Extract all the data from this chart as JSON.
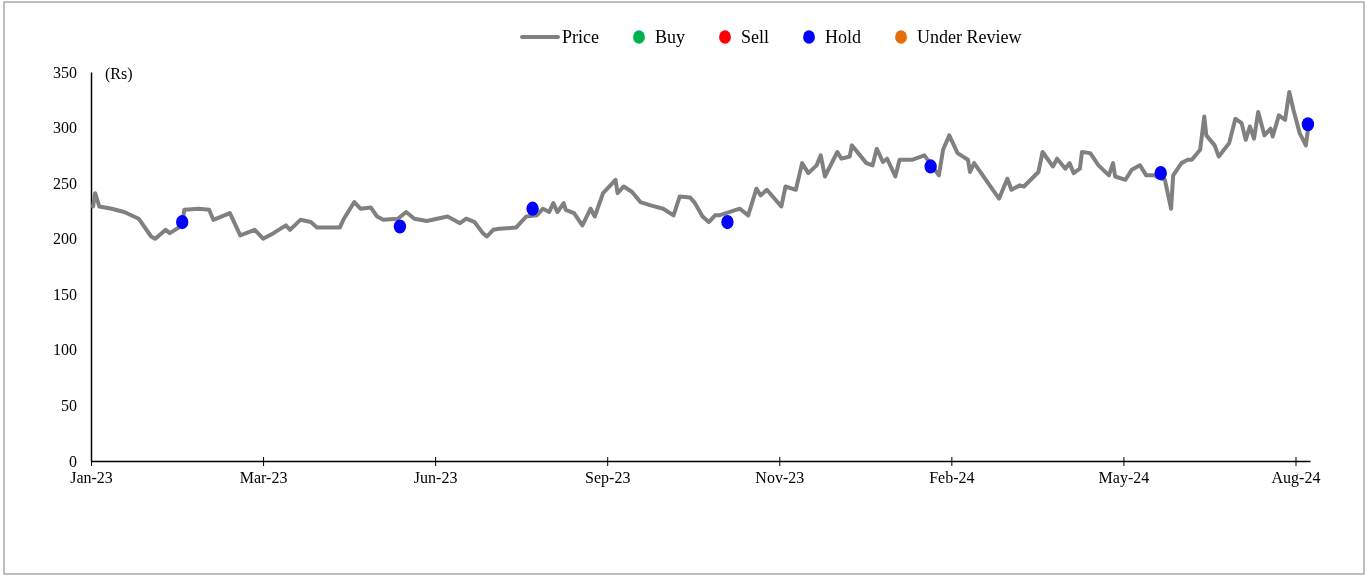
{
  "chart_data": {
    "type": "line",
    "ylabel": "(Rs)",
    "legend": "top",
    "line_style": "solid",
    "grid": false,
    "xlim": [
      "2023-01-01",
      "2024-08-11"
    ],
    "ylim": [
      0,
      350
    ],
    "yticks": [
      0,
      50,
      100,
      150,
      200,
      250,
      300,
      350
    ],
    "xticks": [
      {
        "value": "2023-01-01",
        "label": "Jan-23"
      },
      {
        "value": "2023-03-25",
        "label": "Mar-23"
      },
      {
        "value": "2023-06-16",
        "label": "Jun-23"
      },
      {
        "value": "2023-09-07",
        "label": "Sep-23"
      },
      {
        "value": "2023-11-29",
        "label": "Nov-23"
      },
      {
        "value": "2024-02-20",
        "label": "Feb-24"
      },
      {
        "value": "2024-05-13",
        "label": "May-24"
      },
      {
        "value": "2024-08-04",
        "label": "Aug-24"
      }
    ],
    "series": [
      {
        "name": "Price",
        "marker": "none",
        "color": "#808080",
        "x": [
          "2023-01-02",
          "2023-01-03",
          "2023-01-05",
          "2023-01-11",
          "2023-01-17",
          "2023-01-24",
          "2023-01-30",
          "2023-02-01",
          "2023-02-06",
          "2023-02-08",
          "2023-02-14",
          "2023-02-15",
          "2023-02-22",
          "2023-02-27",
          "2023-03-01",
          "2023-03-09",
          "2023-03-14",
          "2023-03-21",
          "2023-03-25",
          "2023-03-30",
          "2023-04-05",
          "2023-04-07",
          "2023-04-12",
          "2023-04-17",
          "2023-04-20",
          "2023-05-01",
          "2023-05-03",
          "2023-05-08",
          "2023-05-11",
          "2023-05-16",
          "2023-05-19",
          "2023-05-22",
          "2023-05-29",
          "2023-06-02",
          "2023-06-06",
          "2023-06-12",
          "2023-06-22",
          "2023-06-28",
          "2023-07-01",
          "2023-07-05",
          "2023-07-09",
          "2023-07-11",
          "2023-07-14",
          "2023-07-17",
          "2023-07-25",
          "2023-07-30",
          "2023-08-04",
          "2023-08-07",
          "2023-08-10",
          "2023-08-12",
          "2023-08-14",
          "2023-08-17",
          "2023-08-18",
          "2023-08-22",
          "2023-08-26",
          "2023-08-30",
          "2023-09-01",
          "2023-09-05",
          "2023-09-10",
          "2023-09-11",
          "2023-09-12",
          "2023-09-15",
          "2023-09-19",
          "2023-09-23",
          "2023-09-28",
          "2023-10-04",
          "2023-10-09",
          "2023-10-12",
          "2023-10-17",
          "2023-10-19",
          "2023-10-23",
          "2023-10-26",
          "2023-10-29",
          "2023-10-31",
          "2023-11-10",
          "2023-11-14",
          "2023-11-18",
          "2023-11-20",
          "2023-11-23",
          "2023-11-30",
          "2023-12-02",
          "2023-12-07",
          "2023-12-10",
          "2023-12-13",
          "2023-12-17",
          "2023-12-19",
          "2023-12-21",
          "2023-12-27",
          "2023-12-29",
          "2024-01-02",
          "2024-01-03",
          "2024-01-10",
          "2024-01-13",
          "2024-01-15",
          "2024-01-18",
          "2024-01-20",
          "2024-01-24",
          "2024-01-26",
          "2024-02-01",
          "2024-02-07",
          "2024-02-14",
          "2024-02-16",
          "2024-02-19",
          "2024-02-23",
          "2024-02-28",
          "2024-02-29",
          "2024-03-02",
          "2024-03-14",
          "2024-03-18",
          "2024-03-20",
          "2024-03-24",
          "2024-03-26",
          "2024-04-02",
          "2024-04-04",
          "2024-04-09",
          "2024-04-11",
          "2024-04-15",
          "2024-04-17",
          "2024-04-19",
          "2024-04-22",
          "2024-04-23",
          "2024-04-27",
          "2024-05-01",
          "2024-05-06",
          "2024-05-08",
          "2024-05-09",
          "2024-05-14",
          "2024-05-17",
          "2024-05-21",
          "2024-05-24",
          "2024-05-28",
          "2024-06-02",
          "2024-06-05",
          "2024-06-06",
          "2024-06-10",
          "2024-06-13",
          "2024-06-15",
          "2024-06-19",
          "2024-06-21",
          "2024-06-22",
          "2024-06-26",
          "2024-06-28",
          "2024-07-03",
          "2024-07-06",
          "2024-07-09",
          "2024-07-11",
          "2024-07-13",
          "2024-07-15",
          "2024-07-17",
          "2024-07-20",
          "2024-07-23",
          "2024-07-24",
          "2024-07-27",
          "2024-07-30",
          "2024-08-01",
          "2024-08-03",
          "2024-08-06",
          "2024-08-09",
          "2024-08-10"
        ],
        "values": [
          229,
          241,
          229,
          227,
          224,
          218,
          202,
          200,
          208,
          205,
          212,
          226,
          227,
          226,
          217,
          223,
          203,
          208,
          200,
          205,
          212,
          208,
          217,
          215,
          210,
          210,
          218,
          233,
          227,
          228,
          220,
          217,
          218,
          224,
          218,
          216,
          220,
          214,
          218,
          215,
          205,
          202,
          208,
          209,
          210,
          220,
          221,
          227,
          224,
          232,
          224,
          232,
          226,
          223,
          212,
          227,
          220,
          241,
          251,
          253,
          241,
          247,
          242,
          233,
          230,
          227,
          221,
          238,
          237,
          233,
          220,
          215,
          221,
          221,
          227,
          221,
          245,
          239,
          244,
          229,
          247,
          244,
          268,
          259,
          266,
          275,
          256,
          278,
          272,
          274,
          284,
          268,
          266,
          281,
          269,
          272,
          256,
          271,
          271,
          275,
          257,
          280,
          293,
          277,
          271,
          260,
          268,
          236,
          254,
          244,
          248,
          247,
          260,
          278,
          265,
          272,
          263,
          268,
          259,
          263,
          278,
          277,
          266,
          257,
          268,
          256,
          253,
          262,
          266,
          257,
          257,
          253,
          227,
          257,
          268,
          271,
          271,
          280,
          310,
          293,
          284,
          274,
          286,
          308,
          304,
          289,
          301,
          290,
          314,
          293,
          299,
          292,
          311,
          307,
          332,
          316,
          295,
          284,
          298
        ]
      },
      {
        "name": "Buy",
        "type": "scatter",
        "marker": "circle",
        "color": "#00b050"
      },
      {
        "name": "Sell",
        "type": "scatter",
        "marker": "circle",
        "color": "#ff0000"
      },
      {
        "name": "Hold",
        "type": "scatter",
        "marker": "circle",
        "color": "#0000ff",
        "x": [
          "2023-02-14",
          "2023-05-30",
          "2023-08-02",
          "2023-11-04",
          "2024-02-10",
          "2024-05-31",
          "2024-08-10"
        ],
        "values": [
          215,
          211,
          227,
          215,
          265,
          259,
          303
        ]
      },
      {
        "name": "Under Review",
        "type": "scatter",
        "marker": "circle",
        "color": "#e46c0a"
      }
    ]
  }
}
